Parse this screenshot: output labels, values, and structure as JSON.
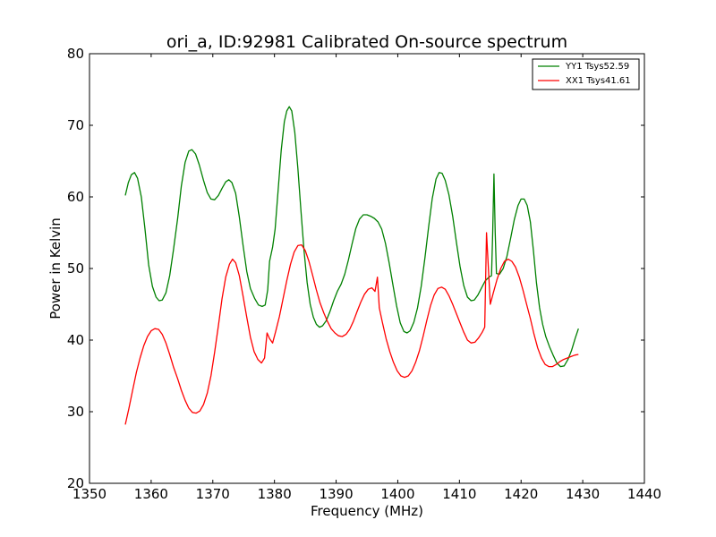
{
  "chart_data": {
    "type": "line",
    "title": "ori_a, ID:92981 Calibrated On-source spectrum",
    "xlabel": "Frequency (MHz)",
    "ylabel": "Power in Kelvin",
    "xlim": [
      1350,
      1440
    ],
    "ylim": [
      20,
      80
    ],
    "xticks": [
      "1350",
      "1360",
      "1370",
      "1380",
      "1390",
      "1400",
      "1410",
      "1420",
      "1430",
      "1440"
    ],
    "yticks": [
      "20",
      "30",
      "40",
      "50",
      "60",
      "70",
      "80"
    ],
    "grid": false,
    "legend_position": "top-right",
    "series": [
      {
        "name": "YY1 Tsys52.59",
        "color": "#008000",
        "points": [
          [
            1355.8,
            60.2
          ],
          [
            1356.3,
            62.0
          ],
          [
            1356.8,
            63.1
          ],
          [
            1357.3,
            63.4
          ],
          [
            1357.8,
            62.6
          ],
          [
            1358.4,
            60.0
          ],
          [
            1359.0,
            55.5
          ],
          [
            1359.6,
            50.5
          ],
          [
            1360.2,
            47.5
          ],
          [
            1360.8,
            46.0
          ],
          [
            1361.3,
            45.5
          ],
          [
            1361.8,
            45.6
          ],
          [
            1362.4,
            46.6
          ],
          [
            1363.0,
            49.0
          ],
          [
            1363.6,
            52.5
          ],
          [
            1364.3,
            57.0
          ],
          [
            1364.9,
            61.5
          ],
          [
            1365.5,
            64.8
          ],
          [
            1366.1,
            66.4
          ],
          [
            1366.6,
            66.6
          ],
          [
            1367.2,
            66.0
          ],
          [
            1367.8,
            64.5
          ],
          [
            1368.5,
            62.3
          ],
          [
            1369.1,
            60.6
          ],
          [
            1369.7,
            59.7
          ],
          [
            1370.3,
            59.6
          ],
          [
            1370.9,
            60.2
          ],
          [
            1371.5,
            61.2
          ],
          [
            1372.1,
            62.1
          ],
          [
            1372.6,
            62.4
          ],
          [
            1373.1,
            62.0
          ],
          [
            1373.7,
            60.5
          ],
          [
            1374.3,
            57.2
          ],
          [
            1374.9,
            53.3
          ],
          [
            1375.5,
            49.6
          ],
          [
            1376.1,
            47.2
          ],
          [
            1376.8,
            45.8
          ],
          [
            1377.4,
            44.9
          ],
          [
            1378.0,
            44.7
          ],
          [
            1378.5,
            44.9
          ],
          [
            1378.9,
            47.0
          ],
          [
            1379.2,
            51.0
          ],
          [
            1379.7,
            53.0
          ],
          [
            1380.1,
            55.5
          ],
          [
            1380.6,
            61.0
          ],
          [
            1381.1,
            66.5
          ],
          [
            1381.6,
            70.5
          ],
          [
            1382.0,
            72.0
          ],
          [
            1382.4,
            72.6
          ],
          [
            1382.8,
            72.0
          ],
          [
            1383.3,
            69.0
          ],
          [
            1383.8,
            64.0
          ],
          [
            1384.3,
            58.0
          ],
          [
            1384.8,
            52.5
          ],
          [
            1385.3,
            48.0
          ],
          [
            1385.8,
            45.0
          ],
          [
            1386.3,
            43.2
          ],
          [
            1386.8,
            42.2
          ],
          [
            1387.3,
            41.8
          ],
          [
            1387.8,
            42.0
          ],
          [
            1388.4,
            42.7
          ],
          [
            1389.0,
            44.0
          ],
          [
            1389.6,
            45.5
          ],
          [
            1390.2,
            46.8
          ],
          [
            1390.8,
            47.8
          ],
          [
            1391.4,
            49.2
          ],
          [
            1392.0,
            51.2
          ],
          [
            1392.6,
            53.5
          ],
          [
            1393.2,
            55.6
          ],
          [
            1393.8,
            56.9
          ],
          [
            1394.4,
            57.5
          ],
          [
            1395.0,
            57.5
          ],
          [
            1395.6,
            57.3
          ],
          [
            1396.2,
            57.0
          ],
          [
            1396.8,
            56.5
          ],
          [
            1397.4,
            55.5
          ],
          [
            1398.0,
            53.5
          ],
          [
            1398.6,
            50.8
          ],
          [
            1399.2,
            47.8
          ],
          [
            1399.8,
            44.8
          ],
          [
            1400.4,
            42.4
          ],
          [
            1401.0,
            41.2
          ],
          [
            1401.5,
            41.0
          ],
          [
            1402.0,
            41.3
          ],
          [
            1402.6,
            42.5
          ],
          [
            1403.2,
            44.5
          ],
          [
            1403.8,
            47.5
          ],
          [
            1404.4,
            51.5
          ],
          [
            1405.0,
            55.8
          ],
          [
            1405.6,
            59.8
          ],
          [
            1406.2,
            62.5
          ],
          [
            1406.7,
            63.4
          ],
          [
            1407.2,
            63.3
          ],
          [
            1407.7,
            62.3
          ],
          [
            1408.3,
            60.3
          ],
          [
            1408.9,
            57.3
          ],
          [
            1409.5,
            53.7
          ],
          [
            1410.1,
            50.3
          ],
          [
            1410.7,
            47.6
          ],
          [
            1411.3,
            46.0
          ],
          [
            1411.9,
            45.5
          ],
          [
            1412.4,
            45.6
          ],
          [
            1413.0,
            46.3
          ],
          [
            1413.6,
            47.3
          ],
          [
            1414.2,
            48.3
          ],
          [
            1414.8,
            48.8
          ],
          [
            1415.2,
            49.0
          ],
          [
            1415.4,
            55.0
          ],
          [
            1415.6,
            63.2
          ],
          [
            1415.8,
            55.0
          ],
          [
            1416.0,
            49.3
          ],
          [
            1416.5,
            49.2
          ],
          [
            1417.1,
            50.0
          ],
          [
            1417.7,
            51.7
          ],
          [
            1418.3,
            54.2
          ],
          [
            1418.9,
            56.8
          ],
          [
            1419.5,
            58.8
          ],
          [
            1420.0,
            59.7
          ],
          [
            1420.5,
            59.7
          ],
          [
            1421.0,
            58.8
          ],
          [
            1421.5,
            56.5
          ],
          [
            1422.0,
            52.5
          ],
          [
            1422.5,
            48.0
          ],
          [
            1423.0,
            44.5
          ],
          [
            1423.5,
            42.2
          ],
          [
            1424.0,
            40.5
          ],
          [
            1424.6,
            39.1
          ],
          [
            1425.2,
            37.9
          ],
          [
            1425.8,
            36.8
          ],
          [
            1426.4,
            36.3
          ],
          [
            1427.0,
            36.4
          ],
          [
            1427.6,
            37.3
          ],
          [
            1428.2,
            38.6
          ],
          [
            1428.8,
            40.3
          ],
          [
            1429.3,
            41.6
          ]
        ]
      },
      {
        "name": "XX1 Tsys41.61",
        "color": "#ff0000",
        "points": [
          [
            1355.8,
            28.2
          ],
          [
            1356.4,
            30.5
          ],
          [
            1357.0,
            33.0
          ],
          [
            1357.6,
            35.5
          ],
          [
            1358.2,
            37.5
          ],
          [
            1358.8,
            39.2
          ],
          [
            1359.4,
            40.5
          ],
          [
            1360.0,
            41.3
          ],
          [
            1360.6,
            41.6
          ],
          [
            1361.2,
            41.5
          ],
          [
            1361.8,
            40.8
          ],
          [
            1362.4,
            39.6
          ],
          [
            1363.0,
            38.0
          ],
          [
            1363.6,
            36.3
          ],
          [
            1364.3,
            34.6
          ],
          [
            1364.9,
            33.0
          ],
          [
            1365.5,
            31.6
          ],
          [
            1366.1,
            30.5
          ],
          [
            1366.7,
            29.9
          ],
          [
            1367.3,
            29.8
          ],
          [
            1367.9,
            30.1
          ],
          [
            1368.5,
            31.0
          ],
          [
            1369.1,
            32.6
          ],
          [
            1369.7,
            35.0
          ],
          [
            1370.3,
            38.3
          ],
          [
            1370.9,
            42.0
          ],
          [
            1371.5,
            45.8
          ],
          [
            1372.1,
            48.8
          ],
          [
            1372.7,
            50.6
          ],
          [
            1373.2,
            51.3
          ],
          [
            1373.7,
            50.8
          ],
          [
            1374.3,
            49.0
          ],
          [
            1374.9,
            46.2
          ],
          [
            1375.5,
            43.2
          ],
          [
            1376.1,
            40.4
          ],
          [
            1376.7,
            38.4
          ],
          [
            1377.3,
            37.3
          ],
          [
            1377.9,
            36.8
          ],
          [
            1378.4,
            37.5
          ],
          [
            1378.8,
            41.0
          ],
          [
            1379.2,
            40.2
          ],
          [
            1379.7,
            39.6
          ],
          [
            1380.2,
            41.2
          ],
          [
            1380.8,
            43.3
          ],
          [
            1381.4,
            45.8
          ],
          [
            1382.0,
            48.3
          ],
          [
            1382.6,
            50.6
          ],
          [
            1383.2,
            52.3
          ],
          [
            1383.8,
            53.2
          ],
          [
            1384.4,
            53.3
          ],
          [
            1385.0,
            52.5
          ],
          [
            1385.6,
            51.0
          ],
          [
            1386.2,
            49.0
          ],
          [
            1386.8,
            47.0
          ],
          [
            1387.4,
            45.2
          ],
          [
            1388.0,
            43.8
          ],
          [
            1388.6,
            42.6
          ],
          [
            1389.2,
            41.6
          ],
          [
            1389.8,
            41.0
          ],
          [
            1390.4,
            40.6
          ],
          [
            1391.0,
            40.5
          ],
          [
            1391.6,
            40.8
          ],
          [
            1392.2,
            41.5
          ],
          [
            1392.8,
            42.6
          ],
          [
            1393.4,
            44.0
          ],
          [
            1394.0,
            45.3
          ],
          [
            1394.6,
            46.4
          ],
          [
            1395.2,
            47.1
          ],
          [
            1395.8,
            47.3
          ],
          [
            1396.3,
            46.8
          ],
          [
            1396.7,
            48.8
          ],
          [
            1397.0,
            44.5
          ],
          [
            1397.5,
            42.5
          ],
          [
            1398.1,
            40.2
          ],
          [
            1398.7,
            38.4
          ],
          [
            1399.3,
            36.9
          ],
          [
            1399.9,
            35.7
          ],
          [
            1400.5,
            35.0
          ],
          [
            1401.1,
            34.8
          ],
          [
            1401.7,
            35.0
          ],
          [
            1402.3,
            35.7
          ],
          [
            1402.9,
            36.9
          ],
          [
            1403.5,
            38.5
          ],
          [
            1404.1,
            40.5
          ],
          [
            1404.7,
            42.7
          ],
          [
            1405.3,
            44.8
          ],
          [
            1405.9,
            46.3
          ],
          [
            1406.5,
            47.2
          ],
          [
            1407.1,
            47.4
          ],
          [
            1407.7,
            47.1
          ],
          [
            1408.3,
            46.2
          ],
          [
            1408.9,
            45.0
          ],
          [
            1409.5,
            43.7
          ],
          [
            1410.1,
            42.4
          ],
          [
            1410.7,
            41.1
          ],
          [
            1411.3,
            40.0
          ],
          [
            1411.9,
            39.6
          ],
          [
            1412.5,
            39.7
          ],
          [
            1413.1,
            40.3
          ],
          [
            1413.7,
            41.1
          ],
          [
            1414.1,
            41.8
          ],
          [
            1414.4,
            55.0
          ],
          [
            1414.7,
            50.0
          ],
          [
            1415.0,
            45.0
          ],
          [
            1415.5,
            46.6
          ],
          [
            1416.1,
            48.5
          ],
          [
            1416.7,
            50.0
          ],
          [
            1417.3,
            51.0
          ],
          [
            1417.9,
            51.3
          ],
          [
            1418.5,
            51.0
          ],
          [
            1419.1,
            50.2
          ],
          [
            1419.7,
            48.8
          ],
          [
            1420.3,
            47.0
          ],
          [
            1420.9,
            45.0
          ],
          [
            1421.5,
            43.0
          ],
          [
            1422.1,
            40.8
          ],
          [
            1422.7,
            38.9
          ],
          [
            1423.3,
            37.5
          ],
          [
            1423.9,
            36.6
          ],
          [
            1424.5,
            36.3
          ],
          [
            1425.1,
            36.3
          ],
          [
            1425.7,
            36.6
          ],
          [
            1426.3,
            37.0
          ],
          [
            1426.9,
            37.3
          ],
          [
            1427.5,
            37.5
          ],
          [
            1428.1,
            37.7
          ],
          [
            1428.7,
            37.9
          ],
          [
            1429.3,
            38.0
          ]
        ]
      }
    ]
  }
}
